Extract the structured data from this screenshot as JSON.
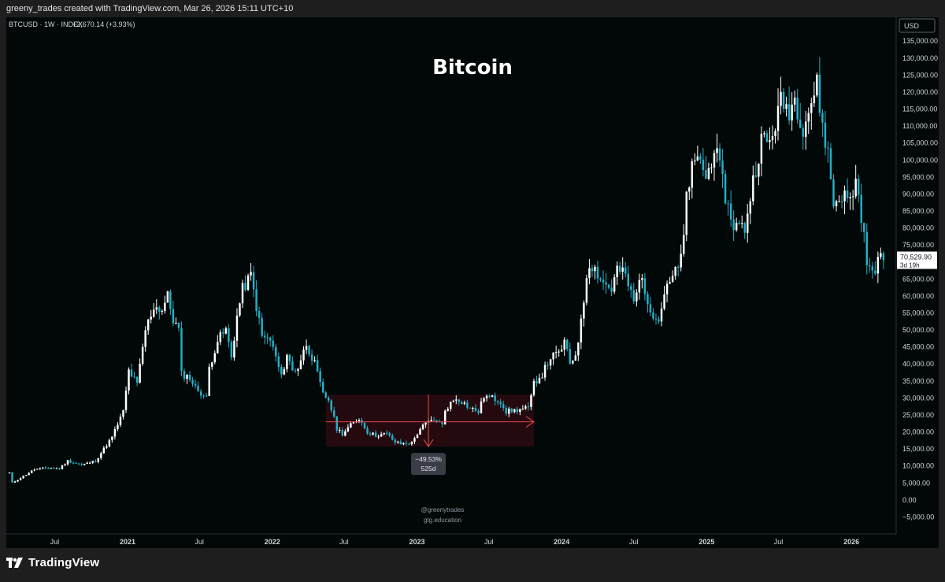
{
  "header": {
    "created_by": "greeny_trades created with TradingView.com, Mar 26, 2026 15:11 UTC+10"
  },
  "legend": {
    "symbol_line": "BTCUSD · 1W · INDEX",
    "change": "+2,670.14 (+3.93%)"
  },
  "watermark": {
    "handle": "@greenytrades",
    "site": "gtg.education"
  },
  "footer": {
    "logo_text": "TradingView"
  },
  "colors": {
    "background": "#020808",
    "up_candle": "#ffffff",
    "down_candle": "#22b1c8",
    "range_fill": "#2a0a10",
    "range_line": "#e84a4a"
  },
  "chart_data": {
    "type": "candlestick",
    "title": "Bitcoin",
    "symbol": "BTCUSD",
    "interval": "1W",
    "currency": "USD",
    "ylim": [
      -10000,
      142000
    ],
    "y_ticks": [
      -5000,
      0,
      5000,
      10000,
      15000,
      20000,
      25000,
      30000,
      35000,
      40000,
      45000,
      50000,
      55000,
      60000,
      65000,
      70000,
      75000,
      80000,
      85000,
      90000,
      95000,
      100000,
      105000,
      110000,
      115000,
      120000,
      125000,
      130000,
      135000
    ],
    "y_tick_labels": [
      "−5,000.00",
      "0.00",
      "5,000.00",
      "10,000.00",
      "15,000.00",
      "20,000.00",
      "25,000.00",
      "30,000.00",
      "35,000.00",
      "40,000.00",
      "45,000.00",
      "50,000.00",
      "55,000.00",
      "60,000.00",
      "65,000.00",
      "70,000.00",
      "75,000.00",
      "80,000.00",
      "85,000.00",
      "90,000.00",
      "95,000.00",
      "100,000.00",
      "105,000.00",
      "110,000.00",
      "115,000.00",
      "120,000.00",
      "125,000.00",
      "130,000.00",
      "135,000.00"
    ],
    "x_range": [
      "2020-03-01",
      "2026-04-20"
    ],
    "x_ticks": [
      {
        "date": "2020-07-01",
        "label": "Jul",
        "bold": false
      },
      {
        "date": "2021-01-01",
        "label": "2021",
        "bold": true
      },
      {
        "date": "2021-07-01",
        "label": "Jul",
        "bold": false
      },
      {
        "date": "2022-01-01",
        "label": "2022",
        "bold": true
      },
      {
        "date": "2022-07-01",
        "label": "Jul",
        "bold": false
      },
      {
        "date": "2023-01-01",
        "label": "2023",
        "bold": true
      },
      {
        "date": "2023-07-01",
        "label": "Jul",
        "bold": false
      },
      {
        "date": "2024-01-01",
        "label": "2024",
        "bold": true
      },
      {
        "date": "2024-07-01",
        "label": "Jul",
        "bold": false
      },
      {
        "date": "2025-01-01",
        "label": "2025",
        "bold": true
      },
      {
        "date": "2025-07-01",
        "label": "Jul",
        "bold": false
      },
      {
        "date": "2026-01-01",
        "label": "2026",
        "bold": true
      }
    ],
    "anchors": [
      [
        "2020-03-09",
        8000
      ],
      [
        "2020-03-16",
        5000
      ],
      [
        "2020-04-13",
        7000
      ],
      [
        "2020-05-11",
        9000
      ],
      [
        "2020-06-15",
        9500
      ],
      [
        "2020-07-13",
        9200
      ],
      [
        "2020-08-03",
        11500
      ],
      [
        "2020-09-07",
        10300
      ],
      [
        "2020-10-12",
        11500
      ],
      [
        "2020-11-02",
        15000
      ],
      [
        "2020-11-23",
        18500
      ],
      [
        "2020-12-21",
        26000
      ],
      [
        "2021-01-04",
        38000
      ],
      [
        "2021-01-25",
        34000
      ],
      [
        "2021-02-15",
        50000
      ],
      [
        "2021-03-08",
        57000
      ],
      [
        "2021-03-29",
        56000
      ],
      [
        "2021-04-12",
        60000
      ],
      [
        "2021-04-26",
        53000
      ],
      [
        "2021-05-10",
        50000
      ],
      [
        "2021-05-17",
        37000
      ],
      [
        "2021-06-07",
        36000
      ],
      [
        "2021-06-21",
        33000
      ],
      [
        "2021-07-19",
        30000
      ],
      [
        "2021-07-26",
        39000
      ],
      [
        "2021-08-16",
        47000
      ],
      [
        "2021-09-06",
        50000
      ],
      [
        "2021-09-20",
        42000
      ],
      [
        "2021-10-04",
        54000
      ],
      [
        "2021-10-18",
        62000
      ],
      [
        "2021-11-08",
        66000
      ],
      [
        "2021-11-22",
        57000
      ],
      [
        "2021-12-06",
        48000
      ],
      [
        "2021-12-27",
        47000
      ],
      [
        "2022-01-10",
        42000
      ],
      [
        "2022-01-24",
        36000
      ],
      [
        "2022-02-07",
        43000
      ],
      [
        "2022-02-21",
        38000
      ],
      [
        "2022-03-07",
        39000
      ],
      [
        "2022-03-28",
        46000
      ],
      [
        "2022-04-18",
        40000
      ],
      [
        "2022-05-09",
        31000
      ],
      [
        "2022-05-23",
        29500
      ],
      [
        "2022-06-13",
        21000
      ],
      [
        "2022-06-27",
        19500
      ],
      [
        "2022-07-18",
        22000
      ],
      [
        "2022-08-08",
        24000
      ],
      [
        "2022-08-29",
        20000
      ],
      [
        "2022-09-19",
        19000
      ],
      [
        "2022-10-17",
        19500
      ],
      [
        "2022-11-07",
        17000
      ],
      [
        "2022-11-21",
        16500
      ],
      [
        "2022-12-19",
        16800
      ],
      [
        "2023-01-09",
        21000
      ],
      [
        "2023-01-30",
        23000
      ],
      [
        "2023-02-20",
        23500
      ],
      [
        "2023-03-06",
        22000
      ],
      [
        "2023-03-13",
        26500
      ],
      [
        "2023-03-27",
        28500
      ],
      [
        "2023-04-10",
        30000
      ],
      [
        "2023-04-24",
        29000
      ],
      [
        "2023-05-15",
        27000
      ],
      [
        "2023-06-05",
        26000
      ],
      [
        "2023-06-19",
        30500
      ],
      [
        "2023-07-10",
        30000
      ],
      [
        "2023-07-31",
        29000
      ],
      [
        "2023-08-14",
        26000
      ],
      [
        "2023-09-11",
        26500
      ],
      [
        "2023-10-09",
        27000
      ],
      [
        "2023-10-16",
        30000
      ],
      [
        "2023-10-23",
        34500
      ],
      [
        "2023-11-13",
        37000
      ],
      [
        "2023-12-04",
        42000
      ],
      [
        "2023-12-25",
        43000
      ],
      [
        "2024-01-08",
        46500
      ],
      [
        "2024-01-22",
        40000
      ],
      [
        "2024-02-05",
        43000
      ],
      [
        "2024-02-19",
        52000
      ],
      [
        "2024-03-04",
        66000
      ],
      [
        "2024-03-11",
        70000
      ],
      [
        "2024-03-25",
        68000
      ],
      [
        "2024-04-15",
        64000
      ],
      [
        "2024-05-06",
        62000
      ],
      [
        "2024-05-20",
        68000
      ],
      [
        "2024-06-10",
        66000
      ],
      [
        "2024-07-01",
        58000
      ],
      [
        "2024-07-22",
        67000
      ],
      [
        "2024-08-05",
        56000
      ],
      [
        "2024-09-02",
        54000
      ],
      [
        "2024-09-23",
        64000
      ],
      [
        "2024-10-21",
        68000
      ],
      [
        "2024-11-04",
        76000
      ],
      [
        "2024-11-11",
        90000
      ],
      [
        "2024-11-25",
        97000
      ],
      [
        "2024-12-16",
        101000
      ],
      [
        "2024-12-30",
        94000
      ],
      [
        "2025-01-20",
        104000
      ],
      [
        "2025-02-03",
        97000
      ],
      [
        "2025-02-24",
        86000
      ],
      [
        "2025-03-10",
        81000
      ],
      [
        "2025-04-07",
        80000
      ],
      [
        "2025-04-28",
        94000
      ],
      [
        "2025-05-19",
        106000
      ],
      [
        "2025-06-09",
        105000
      ],
      [
        "2025-07-07",
        117000
      ],
      [
        "2025-07-28",
        115000
      ],
      [
        "2025-08-11",
        118000
      ],
      [
        "2025-09-01",
        110000
      ],
      [
        "2025-10-06",
        122000
      ],
      [
        "2025-10-20",
        110000
      ],
      [
        "2025-11-03",
        102000
      ],
      [
        "2025-11-17",
        87000
      ],
      [
        "2025-12-08",
        90000
      ],
      [
        "2025-12-29",
        88000
      ],
      [
        "2026-01-12",
        94000
      ],
      [
        "2026-01-26",
        84000
      ],
      [
        "2026-02-09",
        70000
      ],
      [
        "2026-02-23",
        66000
      ],
      [
        "2026-03-09",
        71000
      ],
      [
        "2026-03-23",
        70530
      ]
    ],
    "annotations": {
      "range_box": {
        "x0": "2022-05-16",
        "x1": "2023-10-23",
        "y0": 15700,
        "y1": 31000,
        "arrow_y": 23000,
        "vline_date": "2023-01-30",
        "down_arrow_from": 31000,
        "down_arrow_to": 15700
      },
      "range_label": [
        "−49.53%",
        "525d"
      ],
      "price_label": [
        "70,529.90",
        "3d 19h"
      ],
      "price_level": 70529.9,
      "currency_box": "USD"
    }
  }
}
